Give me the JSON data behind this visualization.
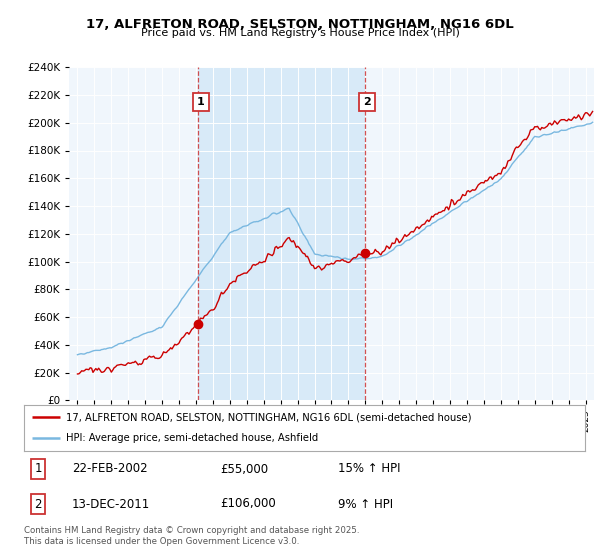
{
  "title": "17, ALFRETON ROAD, SELSTON, NOTTINGHAM, NG16 6DL",
  "subtitle": "Price paid vs. HM Land Registry's House Price Index (HPI)",
  "sale1_date": "22-FEB-2002",
  "sale1_price": 55000,
  "sale1_pct": "15% ↑ HPI",
  "sale1_year": 2002.13,
  "sale2_date": "13-DEC-2011",
  "sale2_price": 106000,
  "sale2_pct": "9% ↑ HPI",
  "sale2_year": 2011.96,
  "legend_house": "17, ALFRETON ROAD, SELSTON, NOTTINGHAM, NG16 6DL (semi-detached house)",
  "legend_hpi": "HPI: Average price, semi-detached house, Ashfield",
  "footer": "Contains HM Land Registry data © Crown copyright and database right 2025.\nThis data is licensed under the Open Government Licence v3.0.",
  "hpi_color": "#7ab8e0",
  "house_color": "#cc0000",
  "shade_color": "#d8eaf8",
  "bg_color": "#f0f6fc",
  "ylim": [
    0,
    240000
  ],
  "yticks": [
    0,
    20000,
    40000,
    60000,
    80000,
    100000,
    120000,
    140000,
    160000,
    180000,
    200000,
    220000,
    240000
  ],
  "xmin": 1995,
  "xmax": 2025
}
